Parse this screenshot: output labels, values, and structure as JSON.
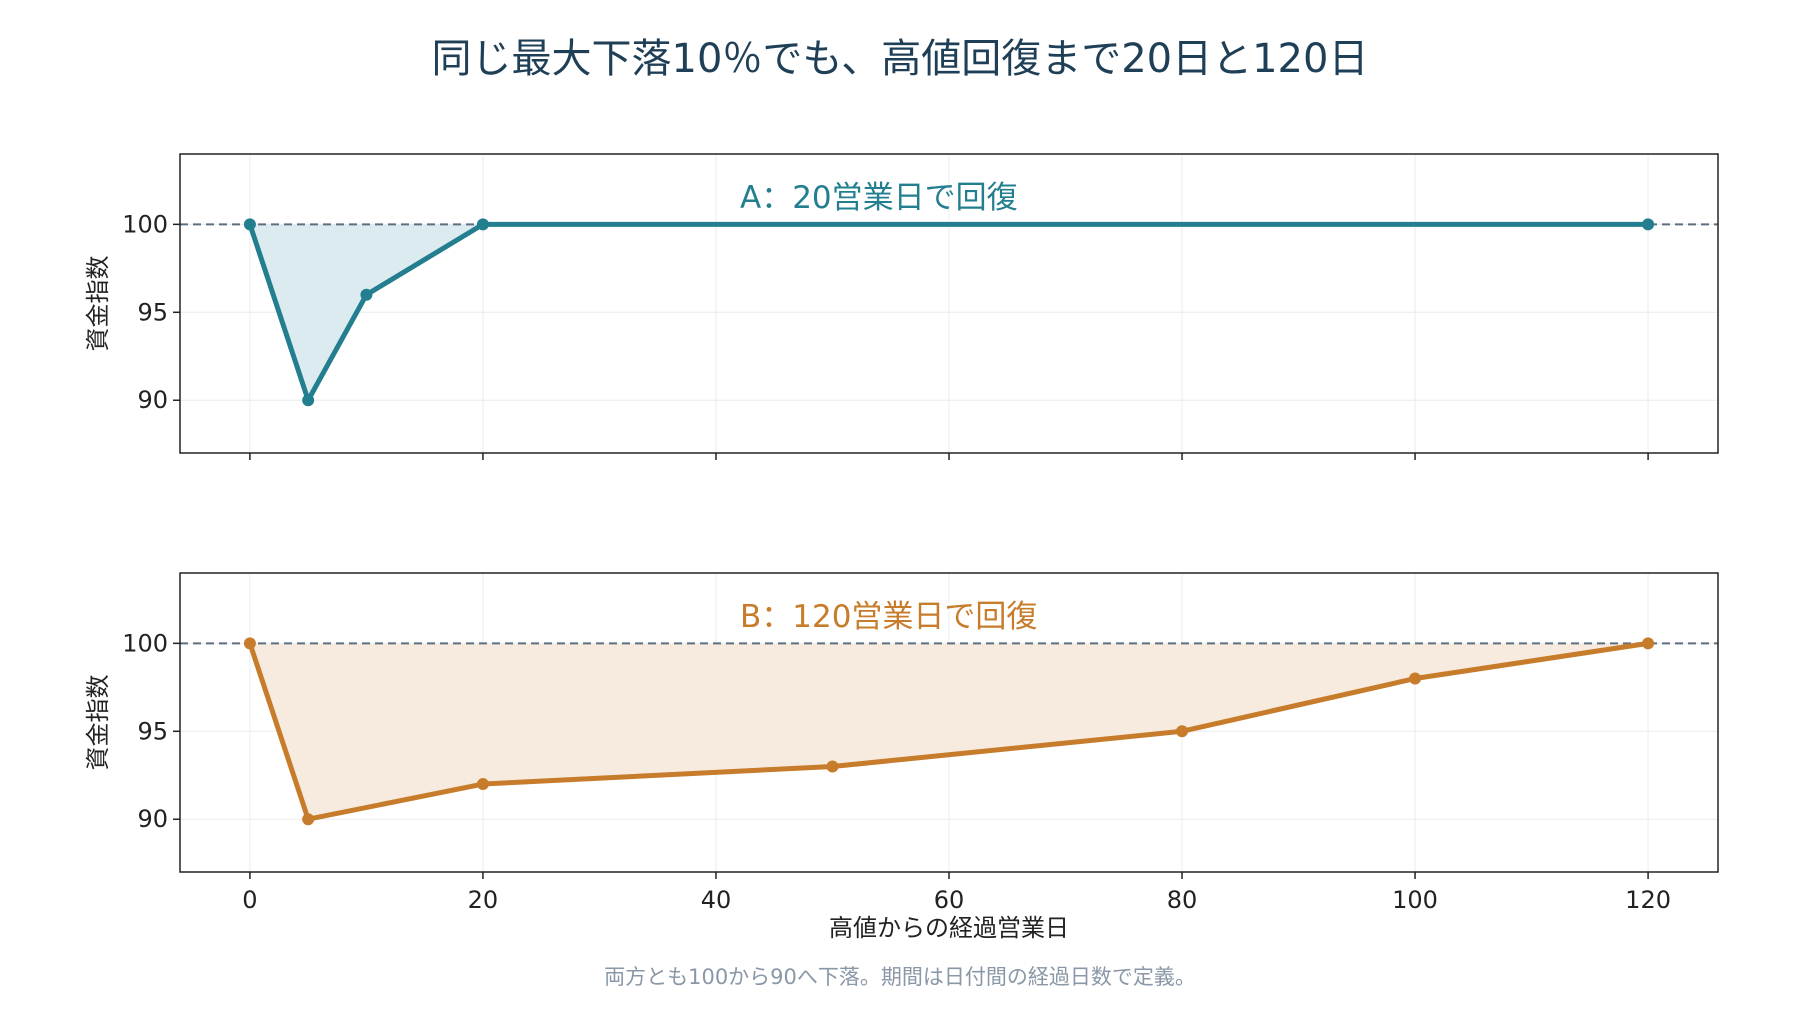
{
  "title": "同じ最大下落10％でも、高値回復まで20日と120日",
  "caption": "両方とも100から90へ下落。期間は日付間の経過日数で定義。",
  "colors": {
    "title": "#1f3f57",
    "series_a": "#237f8f",
    "series_a_fill": "#dcebef",
    "series_b": "#c77c2b",
    "series_b_fill": "#f7eadf",
    "reference_line": "#5c6f80",
    "caption": "#8a97a6",
    "grid": "#ececec"
  },
  "chart_data": [
    {
      "type": "line",
      "label": "A：20営業日で回復",
      "ylabel": "資金指数",
      "xlabel": "",
      "xlim": [
        -6,
        126
      ],
      "ylim": [
        87,
        104
      ],
      "xticks": [
        0,
        20,
        40,
        60,
        80,
        100,
        120
      ],
      "yticks": [
        90,
        95,
        100
      ],
      "ytick_labels": [
        "90",
        "95",
        "100"
      ],
      "reference_line": 100,
      "grid": true,
      "series": [
        {
          "color": "#237f8f",
          "fill": "#dcebef",
          "x": [
            0,
            5,
            10,
            20,
            120
          ],
          "y": [
            100,
            90,
            96,
            100,
            100
          ]
        }
      ]
    },
    {
      "type": "line",
      "label": "B：120営業日で回復",
      "ylabel": "資金指数",
      "xlabel": "高値からの経過営業日",
      "xlim": [
        -6,
        126
      ],
      "ylim": [
        87,
        104
      ],
      "xticks": [
        0,
        20,
        40,
        60,
        80,
        100,
        120
      ],
      "xtick_labels": [
        "0",
        "20",
        "40",
        "60",
        "80",
        "100",
        "120"
      ],
      "yticks": [
        90,
        95,
        100
      ],
      "ytick_labels": [
        "90",
        "95",
        "100"
      ],
      "reference_line": 100,
      "grid": true,
      "series": [
        {
          "color": "#c77c2b",
          "fill": "#f7eadf",
          "x": [
            0,
            5,
            20,
            50,
            80,
            100,
            120
          ],
          "y": [
            100,
            90,
            92,
            93,
            95,
            98,
            100
          ]
        }
      ]
    }
  ]
}
